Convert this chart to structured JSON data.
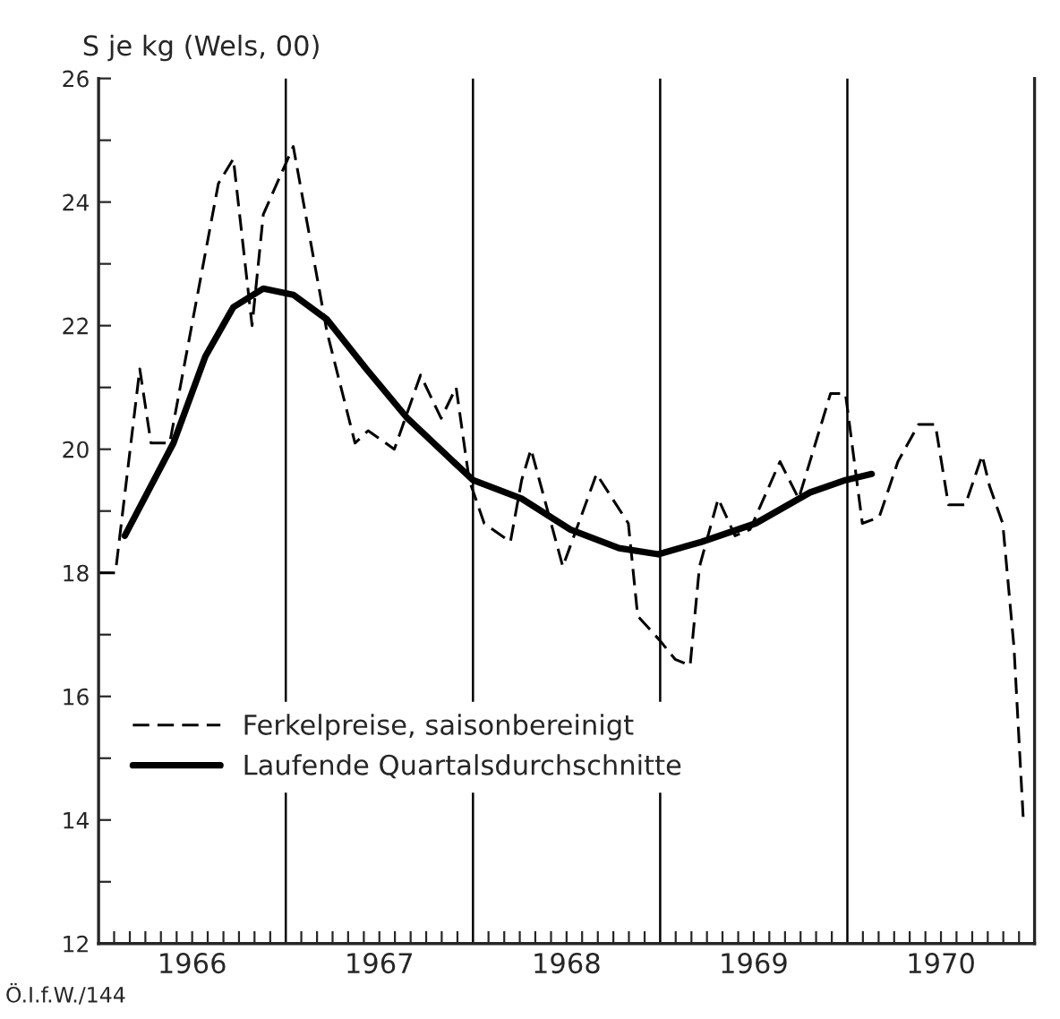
{
  "chart_data": {
    "type": "line",
    "ylabel": "S je kg (Wels, 00)",
    "annotations": [
      "Ö.I.f.W./144"
    ],
    "series": [
      {
        "name": "Ferkelpreise, saisonbereinigt",
        "color": "#000000",
        "line_style": "dashed",
        "x": [
          1966.0,
          1966.09,
          1966.22,
          1966.28,
          1966.38,
          1966.64,
          1966.72,
          1966.82,
          1966.88,
          1967.04,
          1967.22,
          1967.37,
          1967.44,
          1967.58,
          1967.72,
          1967.83,
          1967.91,
          1967.98,
          1968.06,
          1968.2,
          1968.26,
          1968.31,
          1968.48,
          1968.66,
          1968.83,
          1968.88,
          1969.0,
          1969.08,
          1969.16,
          1969.21,
          1969.31,
          1969.4,
          1969.48,
          1969.64,
          1969.74,
          1969.91,
          1969.99,
          1970.08,
          1970.17,
          1970.27,
          1970.38,
          1970.47,
          1970.54,
          1970.63,
          1970.72,
          1970.76,
          1970.83,
          1970.89,
          1970.94
        ],
        "values": [
          18.0,
          18.0,
          21.3,
          20.1,
          20.1,
          24.3,
          24.7,
          22.0,
          23.8,
          24.9,
          21.9,
          20.1,
          20.3,
          20.0,
          21.2,
          20.5,
          21.0,
          19.5,
          18.8,
          18.5,
          19.5,
          20.0,
          18.1,
          19.6,
          18.8,
          17.3,
          16.9,
          16.6,
          16.5,
          18.1,
          19.2,
          18.6,
          18.7,
          19.8,
          19.2,
          20.9,
          20.9,
          18.8,
          18.9,
          19.8,
          20.4,
          20.4,
          19.1,
          19.1,
          19.9,
          19.4,
          18.8,
          16.8,
          14.0
        ]
      },
      {
        "name": "Laufende Quartalsdurchschnitte",
        "color": "#000000",
        "line_style": "solid",
        "x": [
          1966.14,
          1966.4,
          1966.57,
          1966.72,
          1966.88,
          1967.04,
          1967.22,
          1967.43,
          1967.65,
          1968.0,
          1968.26,
          1968.52,
          1968.78,
          1968.99,
          1969.22,
          1969.51,
          1969.8,
          1969.99,
          1970.13
        ],
        "values": [
          18.6,
          20.1,
          21.5,
          22.3,
          22.6,
          22.5,
          22.1,
          21.3,
          20.5,
          19.5,
          19.2,
          18.7,
          18.4,
          18.3,
          18.5,
          18.8,
          19.3,
          19.5,
          19.6
        ]
      }
    ],
    "xlim": [
      1966,
      1971
    ],
    "xticks": [
      {
        "value": 1966.083,
        "label": null
      },
      {
        "value": 1966.167,
        "label": null
      },
      {
        "value": 1966.25,
        "label": null
      },
      {
        "value": 1966.333,
        "label": null
      },
      {
        "value": 1966.417,
        "label": null
      },
      {
        "value": 1966.5,
        "label": "1966"
      },
      {
        "value": 1966.583,
        "label": null
      },
      {
        "value": 1966.667,
        "label": null
      },
      {
        "value": 1966.75,
        "label": null
      },
      {
        "value": 1966.833,
        "label": null
      },
      {
        "value": 1966.917,
        "label": null
      },
      {
        "value": 1967.083,
        "label": null
      },
      {
        "value": 1967.167,
        "label": null
      },
      {
        "value": 1967.25,
        "label": null
      },
      {
        "value": 1967.333,
        "label": null
      },
      {
        "value": 1967.417,
        "label": null
      },
      {
        "value": 1967.5,
        "label": "1967"
      },
      {
        "value": 1967.583,
        "label": null
      },
      {
        "value": 1967.667,
        "label": null
      },
      {
        "value": 1967.75,
        "label": null
      },
      {
        "value": 1967.833,
        "label": null
      },
      {
        "value": 1967.917,
        "label": null
      },
      {
        "value": 1968.083,
        "label": null
      },
      {
        "value": 1968.167,
        "label": null
      },
      {
        "value": 1968.25,
        "label": null
      },
      {
        "value": 1968.333,
        "label": null
      },
      {
        "value": 1968.417,
        "label": null
      },
      {
        "value": 1968.5,
        "label": "1968"
      },
      {
        "value": 1968.583,
        "label": null
      },
      {
        "value": 1968.667,
        "label": null
      },
      {
        "value": 1968.75,
        "label": null
      },
      {
        "value": 1968.833,
        "label": null
      },
      {
        "value": 1968.917,
        "label": null
      },
      {
        "value": 1969.083,
        "label": null
      },
      {
        "value": 1969.167,
        "label": null
      },
      {
        "value": 1969.25,
        "label": null
      },
      {
        "value": 1969.333,
        "label": null
      },
      {
        "value": 1969.417,
        "label": null
      },
      {
        "value": 1969.5,
        "label": "1969"
      },
      {
        "value": 1969.583,
        "label": null
      },
      {
        "value": 1969.667,
        "label": null
      },
      {
        "value": 1969.75,
        "label": null
      },
      {
        "value": 1969.833,
        "label": null
      },
      {
        "value": 1969.917,
        "label": null
      },
      {
        "value": 1970.083,
        "label": null
      },
      {
        "value": 1970.167,
        "label": null
      },
      {
        "value": 1970.25,
        "label": null
      },
      {
        "value": 1970.333,
        "label": null
      },
      {
        "value": 1970.417,
        "label": null
      },
      {
        "value": 1970.5,
        "label": "1970"
      },
      {
        "value": 1970.583,
        "label": null
      },
      {
        "value": 1970.667,
        "label": null
      },
      {
        "value": 1970.75,
        "label": null
      },
      {
        "value": 1970.833,
        "label": null
      },
      {
        "value": 1970.917,
        "label": null
      }
    ],
    "ylim": [
      12,
      26
    ],
    "yticks": [
      12,
      {
        "value": 13,
        "label": null
      },
      14,
      {
        "value": 15,
        "label": null
      },
      16,
      {
        "value": 17,
        "label": null
      },
      18,
      {
        "value": 19,
        "label": null
      },
      20,
      {
        "value": 21,
        "label": null
      },
      22,
      {
        "value": 23,
        "label": null
      },
      24,
      {
        "value": 25,
        "label": null
      },
      26
    ],
    "ref_lines": [
      {
        "axis": "x",
        "value": 1967,
        "color": "#000000"
      },
      {
        "axis": "x",
        "value": 1968,
        "color": "#000000"
      },
      {
        "axis": "x",
        "value": 1969,
        "color": "#000000"
      },
      {
        "axis": "x",
        "value": 1970,
        "color": "#000000"
      }
    ],
    "legend": "bottom",
    "grid": false
  }
}
